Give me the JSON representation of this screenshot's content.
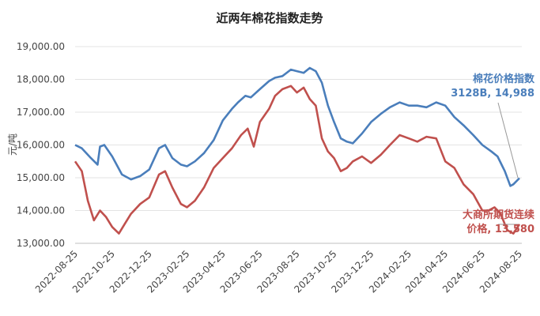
{
  "chart_data": {
    "type": "line",
    "title": "近两年棉花指数走势",
    "ylabel": "元/吨",
    "xlabel": "",
    "ylim": [
      13000,
      19000
    ],
    "yticks": [
      "13,000.00",
      "14,000.00",
      "15,000.00",
      "16,000.00",
      "17,000.00",
      "18,000.00",
      "19,000.00"
    ],
    "yvals": [
      13000,
      14000,
      15000,
      16000,
      17000,
      18000,
      19000
    ],
    "xticks": [
      "2022-08-25",
      "2022-10-25",
      "2022-12-25",
      "2023-02-25",
      "2023-04-25",
      "2023-06-25",
      "2023-08-25",
      "2023-10-25",
      "2023-12-25",
      "2024-02-25",
      "2024-04-25",
      "2024-06-25",
      "2024-08-25"
    ],
    "grid": "horizontal",
    "series": [
      {
        "name": "棉花价格指数 3128B",
        "color": "#4a7ebb",
        "x": [
          "2022-08-25",
          "2022-09-05",
          "2022-09-20",
          "2022-10-01",
          "2022-10-05",
          "2022-10-12",
          "2022-10-25",
          "2022-11-10",
          "2022-11-25",
          "2022-12-10",
          "2022-12-25",
          "2023-01-10",
          "2023-01-20",
          "2023-02-01",
          "2023-02-15",
          "2023-02-25",
          "2023-03-10",
          "2023-03-25",
          "2023-04-10",
          "2023-04-25",
          "2023-05-10",
          "2023-05-20",
          "2023-06-01",
          "2023-06-10",
          "2023-06-25",
          "2023-07-10",
          "2023-07-20",
          "2023-08-01",
          "2023-08-15",
          "2023-08-25",
          "2023-09-05",
          "2023-09-15",
          "2023-09-25",
          "2023-10-05",
          "2023-10-15",
          "2023-10-25",
          "2023-11-05",
          "2023-11-15",
          "2023-11-25",
          "2023-12-10",
          "2023-12-25",
          "2024-01-10",
          "2024-01-25",
          "2024-02-10",
          "2024-02-25",
          "2024-03-10",
          "2024-03-25",
          "2024-04-10",
          "2024-04-25",
          "2024-05-10",
          "2024-05-25",
          "2024-06-10",
          "2024-06-25",
          "2024-07-10",
          "2024-07-20",
          "2024-08-01",
          "2024-08-10",
          "2024-08-15",
          "2024-08-25"
        ],
        "values": [
          16000,
          15900,
          15600,
          15400,
          15950,
          16000,
          15650,
          15100,
          14950,
          15050,
          15250,
          15900,
          16000,
          15600,
          15400,
          15350,
          15500,
          15750,
          16150,
          16750,
          17100,
          17300,
          17500,
          17450,
          17700,
          17950,
          18050,
          18100,
          18300,
          18250,
          18200,
          18350,
          18250,
          17900,
          17200,
          16700,
          16200,
          16100,
          16050,
          16350,
          16700,
          16950,
          17150,
          17300,
          17200,
          17200,
          17150,
          17300,
          17200,
          16850,
          16600,
          16300,
          16000,
          15800,
          15650,
          15200,
          14750,
          14800,
          14988
        ]
      },
      {
        "name": "大商所期货连续价格",
        "color": "#c0504d",
        "x": [
          "2022-08-25",
          "2022-09-05",
          "2022-09-15",
          "2022-09-25",
          "2022-10-05",
          "2022-10-15",
          "2022-10-25",
          "2022-11-05",
          "2022-11-15",
          "2022-11-25",
          "2022-12-10",
          "2022-12-25",
          "2023-01-10",
          "2023-01-20",
          "2023-02-01",
          "2023-02-15",
          "2023-02-25",
          "2023-03-10",
          "2023-03-25",
          "2023-04-10",
          "2023-04-25",
          "2023-05-10",
          "2023-05-25",
          "2023-06-05",
          "2023-06-15",
          "2023-06-25",
          "2023-07-10",
          "2023-07-20",
          "2023-08-01",
          "2023-08-15",
          "2023-08-25",
          "2023-09-05",
          "2023-09-15",
          "2023-09-25",
          "2023-10-05",
          "2023-10-15",
          "2023-10-25",
          "2023-11-05",
          "2023-11-15",
          "2023-11-25",
          "2023-12-10",
          "2023-12-25",
          "2024-01-10",
          "2024-01-25",
          "2024-02-10",
          "2024-02-25",
          "2024-03-10",
          "2024-03-25",
          "2024-04-10",
          "2024-04-25",
          "2024-05-10",
          "2024-05-25",
          "2024-06-10",
          "2024-06-25",
          "2024-07-05",
          "2024-07-15",
          "2024-07-25",
          "2024-08-05",
          "2024-08-15",
          "2024-08-25"
        ],
        "values": [
          15500,
          15200,
          14300,
          13700,
          14000,
          13800,
          13500,
          13300,
          13600,
          13900,
          14200,
          14400,
          15100,
          15200,
          14700,
          14200,
          14100,
          14300,
          14700,
          15300,
          15600,
          15900,
          16300,
          16500,
          15950,
          16700,
          17100,
          17500,
          17700,
          17800,
          17600,
          17750,
          17400,
          17200,
          16200,
          15800,
          15600,
          15200,
          15300,
          15500,
          15650,
          15450,
          15700,
          16000,
          16300,
          16200,
          16100,
          16250,
          16200,
          15500,
          15300,
          14800,
          14500,
          14000,
          14000,
          14100,
          13900,
          13400,
          13300,
          13580
        ]
      }
    ],
    "annotations": [
      {
        "lines": [
          "棉花价格指数",
          "3128B, 14,988"
        ],
        "color": "#4a7ebb"
      },
      {
        "lines": [
          "大商所期货连续",
          "价格, 13,580"
        ],
        "color": "#c0504d"
      }
    ]
  }
}
